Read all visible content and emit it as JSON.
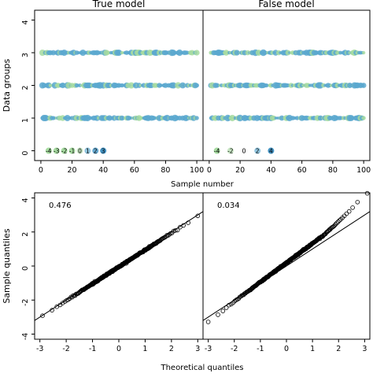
{
  "chart_data": [
    {
      "type": "scatter",
      "panels": [
        {
          "title": "True model",
          "rows": [
            {
              "y": 3,
              "x_range": [
                1,
                100
              ]
            },
            {
              "y": 2,
              "x_range": [
                1,
                100
              ]
            },
            {
              "y": 1,
              "x_range": [
                1,
                100
              ]
            }
          ],
          "legend_labels": [
            "-4",
            "-3",
            "-2",
            "-1",
            "0",
            "1",
            "2",
            "3"
          ],
          "legend_colors": [
            "#a6dba0",
            "#a6dba0",
            "#a6dba0",
            "#a6dba0",
            "#c8e6c4",
            "#92c5de",
            "#67a9cf",
            "#4393c3"
          ]
        },
        {
          "title": "False model",
          "rows": [
            {
              "y": 3,
              "x_range": [
                1,
                100
              ]
            },
            {
              "y": 2,
              "x_range": [
                1,
                100
              ]
            },
            {
              "y": 1,
              "x_range": [
                1,
                100
              ]
            }
          ],
          "legend_labels": [
            "-4",
            "-2",
            "0",
            "2",
            "4"
          ],
          "legend_colors": [
            "#a6dba0",
            "#c8e6c4",
            "#f0f0f0",
            "#92c5de",
            "#4393c3"
          ]
        }
      ],
      "xlabel": "Sample number",
      "ylabel": "Data groups",
      "x_ticks": [
        "0",
        "20",
        "40",
        "60",
        "80",
        "100"
      ],
      "y_ticks": [
        "0",
        "1",
        "2",
        "3",
        "4"
      ],
      "xlim": [
        -4,
        104
      ],
      "ylim": [
        -0.3,
        4.3
      ],
      "colors": {
        "blue": "#5aa8cf",
        "green": "#a6dba0"
      }
    },
    {
      "type": "scatter",
      "panels": [
        {
          "annotation": "0.476",
          "line": {
            "slope": 1.0,
            "intercept": 0.0
          },
          "points_range": [
            -2.9,
            3.0
          ],
          "n": 300
        },
        {
          "annotation": "0.034",
          "line": {
            "slope": 1.0,
            "intercept": 0.0
          },
          "points_range": [
            -3.0,
            3.1
          ],
          "n": 300
        }
      ],
      "xlabel": "Theoretical quantiles",
      "ylabel": "Sample quantiles",
      "x_ticks": [
        "-3",
        "-2",
        "-1",
        "0",
        "1",
        "2",
        "3"
      ],
      "y_ticks": [
        "-4",
        "-2",
        "0",
        "2",
        "4"
      ],
      "xlim": [
        -3.2,
        3.2
      ],
      "ylim": [
        -4.3,
        4.3
      ]
    }
  ]
}
